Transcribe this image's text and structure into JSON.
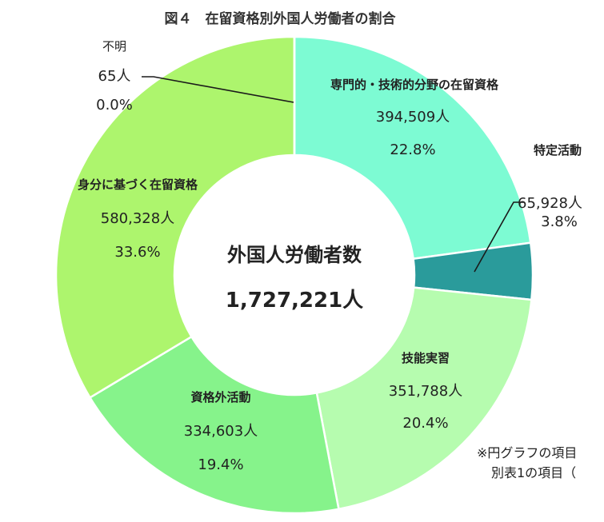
{
  "chart_data": {
    "type": "pie",
    "title": "図４　在留資格別外国人労働者の割合",
    "center_label": "外国人労働者数",
    "center_value": "1,727,221人",
    "slices": [
      {
        "name": "専門的・技術的分野の在留資格",
        "count": "394,509人",
        "percent": "22.8%",
        "value": 394509,
        "color": "#7dfbd3"
      },
      {
        "name": "特定活動",
        "count": "65,928人",
        "percent": "3.8%",
        "value": 65928,
        "color": "#2a9b9b"
      },
      {
        "name": "技能実習",
        "count": "351,788人",
        "percent": "20.4%",
        "value": 351788,
        "color": "#b6fcaf"
      },
      {
        "name": "資格外活動",
        "count": "334,603人",
        "percent": "19.4%",
        "value": 334603,
        "color": "#86f38b"
      },
      {
        "name": "身分に基づく在留資格",
        "count": "580,328人",
        "percent": "33.6%",
        "value": 580328,
        "color": "#adf56d"
      },
      {
        "name": "不明",
        "count": "65人",
        "percent": "0.0%",
        "value": 65,
        "color": "#adf56d"
      }
    ]
  },
  "note": {
    "line1": "※円グラフの項目",
    "line2": "別表1の項目（"
  }
}
